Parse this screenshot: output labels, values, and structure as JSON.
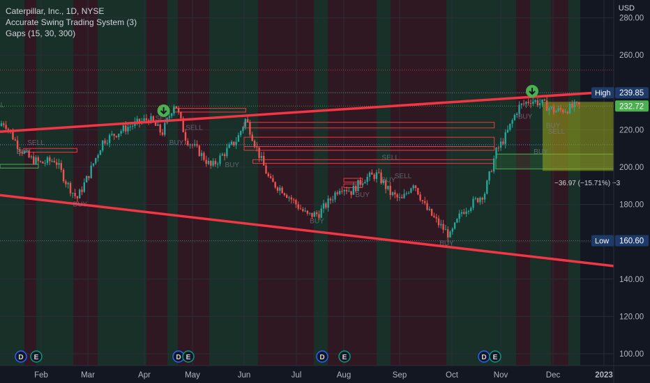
{
  "legend": {
    "symbol_line": "Caterpillar, Inc., 1D, NYSE",
    "indicator_1": "Accurate Swing Trading System (3)",
    "indicator_2": "Gaps (15, 30, 300)"
  },
  "currency_label": "USD",
  "colors": {
    "background": "#131722",
    "up": "#26a69a",
    "down": "#ef5350",
    "trendline": "#f23645",
    "green_shade": "#1b3a2a",
    "red_shade": "#3a1a22",
    "gap_box": "#f23645",
    "gap_box_green": "#4caf50",
    "target_box": "#9aa81d",
    "text": "#b2b5be"
  },
  "chart_data": {
    "type": "candlestick",
    "symbol": "Caterpillar, Inc.",
    "interval": "1D",
    "exchange": "NYSE",
    "y_axis": {
      "unit": "USD",
      "ticks": [
        100,
        120,
        140,
        160,
        180,
        200,
        220,
        240,
        260,
        280
      ],
      "tick_labels": [
        "100.00",
        "120.00",
        "140.00",
        "160.00",
        "180.00",
        "200.00",
        "220.00",
        "240.00",
        "260.00",
        "280.00"
      ],
      "range": [
        98,
        283
      ]
    },
    "x_axis": {
      "tick_labels": [
        "Feb",
        "Mar",
        "Apr",
        "May",
        "Jun",
        "Jul",
        "Aug",
        "Sep",
        "Oct",
        "Nov",
        "Dec",
        "2023"
      ]
    },
    "price_tags": [
      {
        "label": "High",
        "value": "239.85"
      },
      {
        "label": "",
        "value": "232.72"
      },
      {
        "label": "Low",
        "value": "160.60"
      }
    ],
    "measure_label": "−36.97 (−15.71%) −3",
    "signal_labels": [
      "SELL",
      "BUY",
      "SELL",
      "BUY",
      "SELL",
      "BUY",
      "SELL",
      "BUY",
      "BUY",
      "SELL",
      "BUY",
      "BUY",
      "SELL",
      "BUY",
      "BUY",
      "BUY",
      "BUY",
      "SELL"
    ],
    "event_markers": [
      "D",
      "E",
      "D",
      "E",
      "D",
      "E",
      "D",
      "E"
    ],
    "horizontal_levels": [
      252,
      239.85,
      232.72,
      212,
      160.6
    ],
    "trendlines": [
      {
        "from": [
          "Jan",
          219
        ],
        "to": [
          "Dec",
          242
        ]
      },
      {
        "from": [
          "Jan",
          185
        ],
        "to": [
          "Dec",
          147
        ]
      }
    ],
    "swing_points": [
      {
        "date": "Jan 3",
        "price": 222
      },
      {
        "date": "Jan 10",
        "price": 224
      },
      {
        "date": "Jan 18",
        "price": 211
      },
      {
        "date": "Jan 24",
        "price": 205
      },
      {
        "date": "Jan 31",
        "price": 202
      },
      {
        "date": "Feb 10",
        "price": 204
      },
      {
        "date": "Feb 17",
        "price": 192
      },
      {
        "date": "Feb 24",
        "price": 183
      },
      {
        "date": "Mar 1",
        "price": 195
      },
      {
        "date": "Mar 9",
        "price": 214
      },
      {
        "date": "Mar 21",
        "price": 221
      },
      {
        "date": "Apr 4",
        "price": 226
      },
      {
        "date": "Apr 12",
        "price": 218
      },
      {
        "date": "Apr 20",
        "price": 235
      },
      {
        "date": "Apr 27",
        "price": 215
      },
      {
        "date": "May 5",
        "price": 208
      },
      {
        "date": "May 12",
        "price": 200
      },
      {
        "date": "May 20",
        "price": 208
      },
      {
        "date": "May 27",
        "price": 215
      },
      {
        "date": "Jun 2",
        "price": 226
      },
      {
        "date": "Jun 9",
        "price": 208
      },
      {
        "date": "Jun 16",
        "price": 192
      },
      {
        "date": "Jun 23",
        "price": 188
      },
      {
        "date": "Jul 1",
        "price": 180
      },
      {
        "date": "Jul 8",
        "price": 174
      },
      {
        "date": "Jul 15",
        "price": 175
      },
      {
        "date": "Jul 22",
        "price": 182
      },
      {
        "date": "Jul 29",
        "price": 190
      },
      {
        "date": "Aug 5",
        "price": 187
      },
      {
        "date": "Aug 12",
        "price": 194
      },
      {
        "date": "Aug 19",
        "price": 196
      },
      {
        "date": "Aug 26",
        "price": 186
      },
      {
        "date": "Sep 2",
        "price": 182
      },
      {
        "date": "Sep 9",
        "price": 192
      },
      {
        "date": "Sep 16",
        "price": 178
      },
      {
        "date": "Sep 23",
        "price": 170
      },
      {
        "date": "Sep 30",
        "price": 163
      },
      {
        "date": "Oct 7",
        "price": 176
      },
      {
        "date": "Oct 14",
        "price": 181
      },
      {
        "date": "Oct 21",
        "price": 186
      },
      {
        "date": "Oct 28",
        "price": 208
      },
      {
        "date": "Nov 4",
        "price": 217
      },
      {
        "date": "Nov 11",
        "price": 232
      },
      {
        "date": "Nov 18",
        "price": 236
      },
      {
        "date": "Nov 25",
        "price": 234
      },
      {
        "date": "Dec 2",
        "price": 230
      },
      {
        "date": "Dec 9",
        "price": 231
      },
      {
        "date": "Dec 14",
        "price": 232.72
      }
    ]
  }
}
